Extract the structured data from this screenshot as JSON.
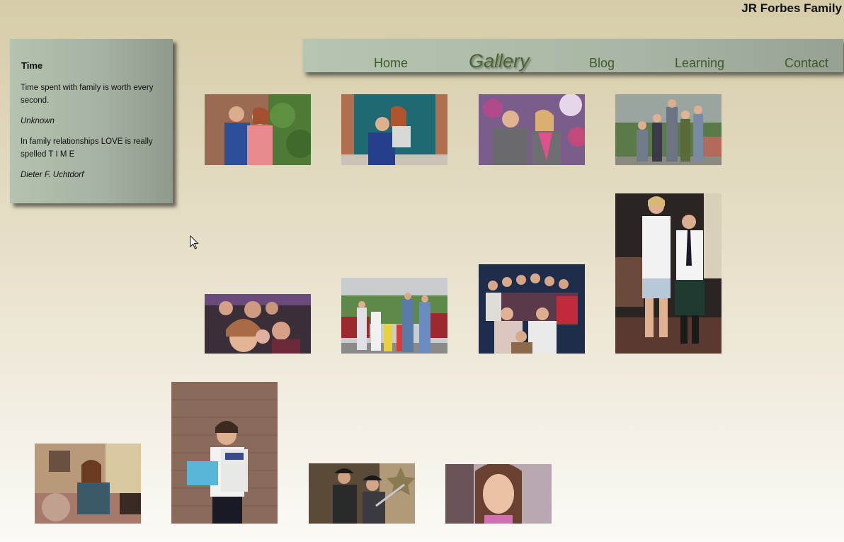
{
  "site": {
    "title": "JR Forbes Family"
  },
  "sidebar": {
    "title": "Time",
    "quotes": [
      {
        "text": "Time spent with family is worth every second.",
        "author": "Unknown"
      },
      {
        "text": "In family relationships LOVE is really spelled T I M E",
        "author": "Dieter F. Uchtdorf"
      }
    ]
  },
  "nav": {
    "items": [
      {
        "label": "Home",
        "active": false
      },
      {
        "label": "Gallery",
        "active": true
      },
      {
        "label": "Blog",
        "active": false
      },
      {
        "label": "Learning",
        "active": false
      },
      {
        "label": "Contact",
        "active": false
      }
    ]
  },
  "colors": {
    "nav_text": "#3f5a2a",
    "panel": "#a9b6a5",
    "page_top": "#d6cca8"
  },
  "icons": {
    "cursor": "arrow-cursor-icon"
  }
}
